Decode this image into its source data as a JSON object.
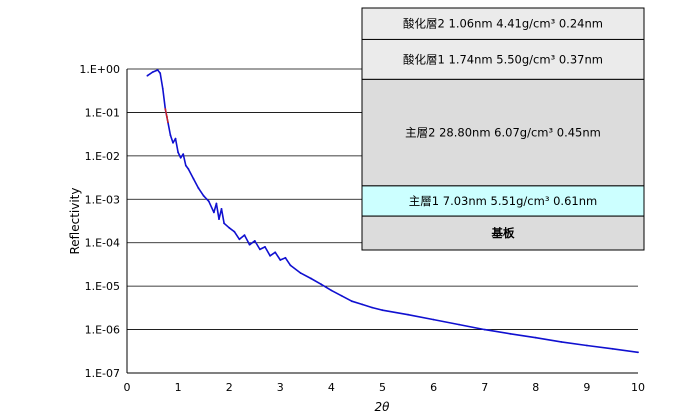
{
  "chart_data": {
    "type": "line",
    "title": "",
    "xlabel": "2θ",
    "ylabel": "Reflectivity",
    "xlim": [
      0,
      10
    ],
    "ylim": [
      1e-07,
      1
    ],
    "y_scale": "log",
    "grid": "horizontal",
    "x_ticks": [
      "0",
      "1",
      "2",
      "3",
      "4",
      "5",
      "6",
      "7",
      "8",
      "9",
      "10"
    ],
    "y_ticks": [
      "1.E-07",
      "1.E-06",
      "1.E-05",
      "1.E-04",
      "1.E-03",
      "1.E-02",
      "1.E-01",
      "1.E+00"
    ],
    "series": [
      {
        "color": "#1010d0",
        "x": [
          0.4,
          0.5,
          0.6,
          0.65,
          0.7,
          0.75,
          0.8,
          0.85,
          0.9,
          0.95,
          1.0,
          1.05,
          1.1,
          1.15,
          1.2,
          1.3,
          1.4,
          1.5,
          1.6,
          1.7,
          1.75,
          1.8,
          1.85,
          1.9,
          2.0,
          2.1,
          2.2,
          2.3,
          2.4,
          2.5,
          2.6,
          2.7,
          2.8,
          2.9,
          3.0,
          3.1,
          3.2,
          3.4,
          3.6,
          3.8,
          4.0,
          4.2,
          4.4,
          4.6,
          4.8,
          5.0,
          5.5,
          6.0,
          6.5,
          7.0,
          7.5,
          8.0,
          8.5,
          9.0,
          9.5,
          10.0
        ],
        "y": [
          0.7,
          0.85,
          0.95,
          0.8,
          0.35,
          0.12,
          0.06,
          0.03,
          0.02,
          0.025,
          0.012,
          0.009,
          0.011,
          0.006,
          0.005,
          0.003,
          0.0018,
          0.0012,
          0.0009,
          0.0005,
          0.0008,
          0.00035,
          0.0006,
          0.00028,
          0.00022,
          0.00018,
          0.00012,
          0.00015,
          9e-05,
          0.00011,
          7e-05,
          8e-05,
          5e-05,
          6e-05,
          4e-05,
          4.5e-05,
          3e-05,
          2e-05,
          1.5e-05,
          1.1e-05,
          8e-06,
          6e-06,
          4.5e-06,
          3.8e-06,
          3.2e-06,
          2.8e-06,
          2.2e-06,
          1.7e-06,
          1.3e-06,
          1e-06,
          8e-07,
          6.5e-07,
          5.2e-07,
          4.3e-07,
          3.6e-07,
          3e-07
        ]
      },
      {
        "color": "#cc2222",
        "x": [
          0.75,
          0.78,
          0.8
        ],
        "y": [
          0.12,
          0.08,
          0.06
        ]
      }
    ],
    "layers": [
      {
        "text": "酸化層2 1.06nm 4.41g/cm³ 0.24nm",
        "fill": "#ebebeb",
        "bold": false,
        "top_frac": 0.0,
        "bottom_frac": 0.13
      },
      {
        "text": "酸化層1 1.74nm 5.50g/cm³ 0.37nm",
        "fill": "#ebebeb",
        "bold": false,
        "top_frac": 0.13,
        "bottom_frac": 0.295
      },
      {
        "text": "主層2 28.80nm 6.07g/cm³ 0.45nm",
        "fill": "#dcdcdc",
        "bold": false,
        "top_frac": 0.295,
        "bottom_frac": 0.735
      },
      {
        "text": "主層1 7.03nm 5.51g/cm³ 0.61nm",
        "fill": "#ccffff",
        "bold": false,
        "top_frac": 0.735,
        "bottom_frac": 0.86
      },
      {
        "text": "基板",
        "fill": "#dcdcdc",
        "bold": true,
        "top_frac": 0.86,
        "bottom_frac": 1.0
      }
    ]
  }
}
